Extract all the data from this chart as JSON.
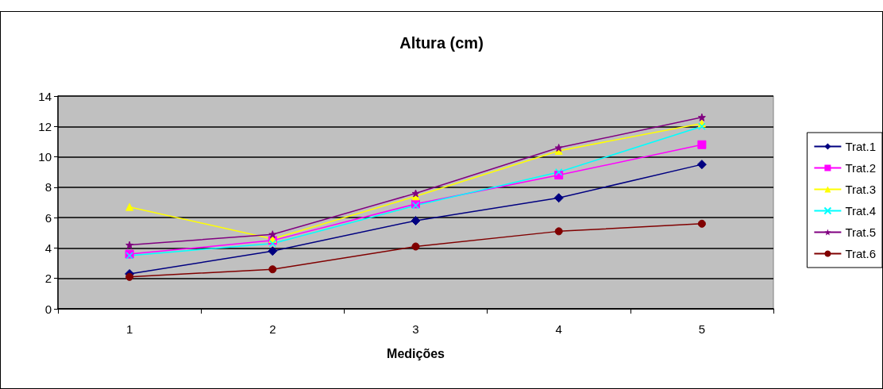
{
  "chart_data": {
    "type": "line",
    "title": "Altura (cm)",
    "xlabel": "Medições",
    "categories": [
      "1",
      "2",
      "3",
      "4",
      "5"
    ],
    "ylim": [
      0,
      14
    ],
    "yticks": [
      0,
      2,
      4,
      6,
      8,
      10,
      12,
      14
    ],
    "grid": "y",
    "legend": "right",
    "series": [
      {
        "name": "Trat.1",
        "color": "#000080",
        "marker": "diamond",
        "values": [
          2.3,
          3.8,
          5.8,
          7.3,
          9.5
        ]
      },
      {
        "name": "Trat.2",
        "color": "#ff00ff",
        "marker": "square",
        "values": [
          3.6,
          4.5,
          6.9,
          8.8,
          10.8
        ]
      },
      {
        "name": "Trat.3",
        "color": "#ffff00",
        "marker": "triangle",
        "values": [
          6.7,
          4.6,
          7.4,
          10.4,
          12.2
        ]
      },
      {
        "name": "Trat.4",
        "color": "#00ffff",
        "marker": "cross",
        "values": [
          3.5,
          4.3,
          6.8,
          9.0,
          12.0
        ]
      },
      {
        "name": "Trat.5",
        "color": "#800080",
        "marker": "star",
        "values": [
          4.2,
          4.9,
          7.6,
          10.6,
          12.6
        ]
      },
      {
        "name": "Trat.6",
        "color": "#800000",
        "marker": "circle",
        "values": [
          2.1,
          2.6,
          4.1,
          5.1,
          5.6
        ]
      }
    ]
  }
}
